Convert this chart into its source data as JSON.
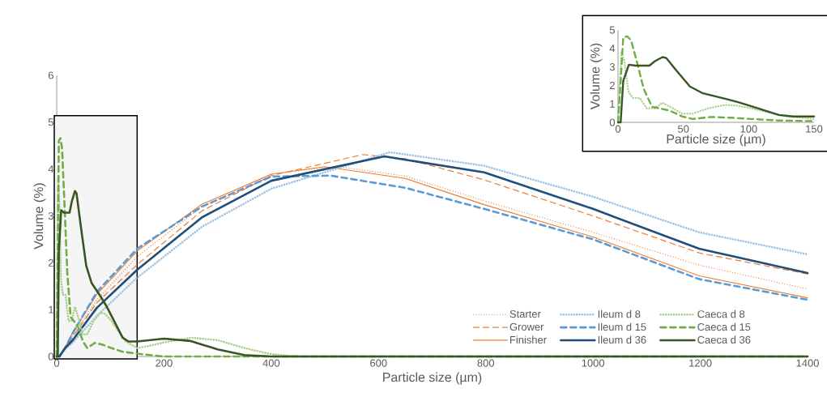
{
  "chart_data": [
    {
      "type": "line",
      "xlabel": "Particle size (µm)",
      "ylabel": "Volume (%)",
      "xlim": [
        0,
        1400
      ],
      "ylim": [
        0,
        6
      ],
      "xticks": [
        0,
        200,
        400,
        600,
        800,
        1000,
        1200,
        1400
      ],
      "yticks": [
        0,
        1,
        2,
        3,
        4,
        5,
        6
      ],
      "legend": "bottom right",
      "bands": [
        {
          "axis": "x",
          "from": 0,
          "to": 150
        }
      ],
      "series": [
        {
          "name": "Starter",
          "color": "#ed7d31",
          "line_style": "dotted",
          "x": [
            0,
            5,
            15,
            30,
            75,
            150,
            271,
            400,
            520,
            650,
            797,
            1000,
            1198,
            1400
          ],
          "values": [
            0,
            0,
            0.17,
            0.45,
            1.21,
            2.13,
            3.2,
            3.89,
            4.06,
            3.85,
            3.32,
            2.65,
            1.95,
            1.44
          ]
        },
        {
          "name": "Grower",
          "color": "#ed7d31",
          "line_style": "dashed",
          "x": [
            0,
            5,
            15,
            30,
            75,
            150,
            271,
            400,
            571,
            650,
            797,
            1000,
            1198,
            1400
          ],
          "values": [
            0,
            0,
            0.17,
            0.42,
            1.15,
            1.96,
            3.11,
            3.86,
            4.31,
            4.22,
            3.77,
            3.0,
            2.21,
            1.76
          ]
        },
        {
          "name": "Finisher",
          "color": "#ed7d31",
          "line_style": "solid",
          "x": [
            0,
            5,
            15,
            30,
            75,
            150,
            271,
            400,
            500,
            650,
            797,
            1000,
            1198,
            1400
          ],
          "values": [
            0,
            0,
            0.17,
            0.52,
            1.33,
            2.25,
            3.25,
            3.89,
            4.05,
            3.8,
            3.24,
            2.55,
            1.72,
            1.25
          ]
        },
        {
          "name": "Ileum d 8",
          "color": "#9dc3e6",
          "line_style": "dotted",
          "x": [
            0,
            5,
            15,
            30,
            75,
            150,
            271,
            400,
            621,
            797,
            1000,
            1198,
            1400
          ],
          "values": [
            0,
            0,
            0.15,
            0.3,
            0.87,
            1.68,
            2.77,
            3.58,
            4.36,
            4.07,
            3.41,
            2.65,
            2.18
          ]
        },
        {
          "name": "Ileum d 15",
          "color": "#5b9bd5",
          "line_style": "dashed",
          "x": [
            0,
            5,
            15,
            30,
            75,
            150,
            271,
            400,
            511,
            650,
            797,
            1000,
            1198,
            1400
          ],
          "values": [
            0,
            0,
            0.17,
            0.5,
            1.38,
            2.3,
            3.2,
            3.84,
            3.86,
            3.6,
            3.15,
            2.5,
            1.65,
            1.21
          ]
        },
        {
          "name": "Ileum d 36",
          "color": "#1f4e79",
          "line_style": "solid",
          "x": [
            0,
            5,
            15,
            30,
            75,
            150,
            271,
            400,
            611,
            797,
            1000,
            1198,
            1400
          ],
          "values": [
            0,
            0,
            0.17,
            0.35,
            1.04,
            1.85,
            2.97,
            3.75,
            4.27,
            3.93,
            3.15,
            2.3,
            1.78
          ]
        },
        {
          "name": "Caeca d 8",
          "color": "#a9d18e",
          "line_style": "dotted",
          "x": [
            0,
            1,
            2.7,
            5,
            8,
            11.4,
            16.5,
            22,
            28,
            34,
            40,
            49,
            57,
            69,
            82,
            90,
            102,
            115,
            129,
            150,
            170,
            200,
            250,
            300,
            350,
            400,
            450,
            1400
          ],
          "values": [
            0,
            1.8,
            3.85,
            3.26,
            1.65,
            1.32,
            1.32,
            0.76,
            0.76,
            1.06,
            0.84,
            0.47,
            0.47,
            0.76,
            0.94,
            0.91,
            0.76,
            0.54,
            0.32,
            0.18,
            0.22,
            0.3,
            0.4,
            0.35,
            0.18,
            0.05,
            0,
            0
          ]
        },
        {
          "name": "Caeca d 15",
          "color": "#70ad47",
          "line_style": "dashed",
          "x": [
            0,
            2,
            4,
            7,
            10,
            14.5,
            19.7,
            26,
            32,
            40,
            49,
            57,
            71,
            86,
            102,
            123,
            150,
            200,
            1400
          ],
          "values": [
            0,
            2.2,
            4.6,
            4.66,
            4.44,
            3.26,
            1.8,
            0.84,
            0.76,
            0.62,
            0.32,
            0.18,
            0.29,
            0.25,
            0.18,
            0.1,
            0.06,
            0,
            0
          ]
        },
        {
          "name": "Caeca d 36",
          "color": "#375623",
          "line_style": "solid",
          "x": [
            0,
            2,
            4,
            8.3,
            13.5,
            24,
            28,
            34,
            37,
            44.5,
            55,
            65,
            82,
            92,
            107,
            123,
            134,
            150,
            200,
            250,
            300,
            350,
            400,
            1400
          ],
          "values": [
            0,
            0,
            2.24,
            3.12,
            3.07,
            3.07,
            3.3,
            3.53,
            3.48,
            2.82,
            1.94,
            1.57,
            1.28,
            1.09,
            0.76,
            0.4,
            0.32,
            0.32,
            0.38,
            0.33,
            0.15,
            0.03,
            0,
            0
          ]
        }
      ]
    },
    {
      "type": "line",
      "xlabel": "Particle size (µm)",
      "ylabel": "Volume (%)",
      "xlim": [
        0,
        150
      ],
      "ylim": [
        0,
        5
      ],
      "xticks": [
        0,
        50,
        100,
        150
      ],
      "yticks": [
        0,
        1,
        2,
        3,
        4,
        5
      ],
      "series": [
        {
          "color": "#a9d18e",
          "line_style": "dotted",
          "x": [
            0,
            1,
            2.7,
            5,
            8,
            11.4,
            16.5,
            22,
            28,
            34,
            40,
            49,
            57,
            69,
            82,
            90,
            102,
            115,
            129,
            150
          ],
          "values": [
            0,
            1.8,
            3.85,
            3.26,
            1.65,
            1.32,
            1.32,
            0.76,
            0.76,
            1.06,
            0.84,
            0.47,
            0.47,
            0.76,
            0.94,
            0.91,
            0.76,
            0.54,
            0.32,
            0.18
          ]
        },
        {
          "color": "#70ad47",
          "line_style": "dashed",
          "x": [
            0,
            2,
            4,
            7,
            10,
            14.5,
            19.7,
            26,
            32,
            40,
            49,
            57,
            71,
            86,
            102,
            123,
            150
          ],
          "values": [
            0,
            2.2,
            4.6,
            4.66,
            4.44,
            3.26,
            1.8,
            0.84,
            0.76,
            0.62,
            0.32,
            0.18,
            0.29,
            0.25,
            0.18,
            0.1,
            0.06
          ]
        },
        {
          "color": "#375623",
          "line_style": "solid",
          "x": [
            0,
            2,
            4,
            8.3,
            13.5,
            24,
            28,
            34,
            37,
            44.5,
            55,
            65,
            82,
            92,
            107,
            123,
            134,
            150
          ],
          "values": [
            0,
            0,
            2.24,
            3.12,
            3.07,
            3.07,
            3.3,
            3.53,
            3.48,
            2.82,
            1.94,
            1.57,
            1.28,
            1.09,
            0.76,
            0.4,
            0.32,
            0.32
          ]
        }
      ]
    }
  ]
}
